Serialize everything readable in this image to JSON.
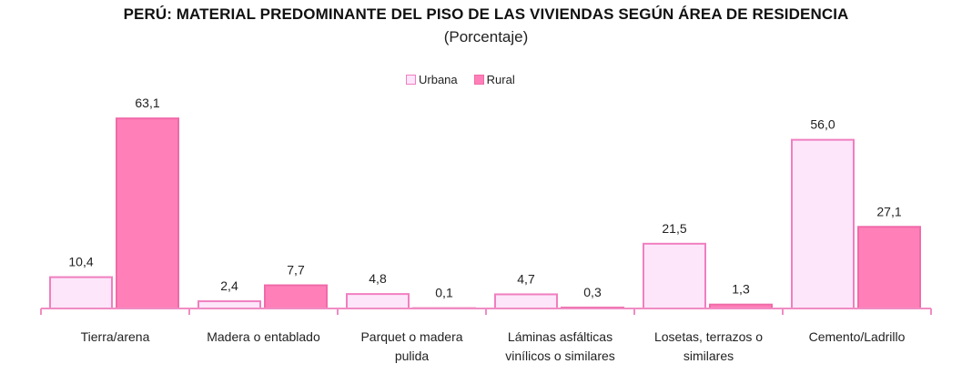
{
  "chart_data": {
    "type": "bar",
    "title": "PERÚ: MATERIAL PREDOMINANTE DEL PISO DE LAS VIVIENDAS SEGÚN ÁREA DE RESIDENCIA",
    "subtitle": "(Porcentaje)",
    "categories": [
      [
        "Tierra/arena"
      ],
      [
        "Madera o entablado"
      ],
      [
        "Parquet o madera",
        "pulida"
      ],
      [
        "Láminas asfálticas",
        "vinílicos o similares"
      ],
      [
        "Losetas, terrazos o",
        "similares"
      ],
      [
        "Cemento/Ladrillo"
      ]
    ],
    "series": [
      {
        "name": "Urbana",
        "values": [
          10.4,
          2.4,
          4.8,
          4.7,
          21.5,
          56.0
        ],
        "labels": [
          "10,4",
          "2,4",
          "4,8",
          "4,7",
          "21,5",
          "56,0"
        ]
      },
      {
        "name": "Rural",
        "values": [
          63.1,
          7.7,
          0.1,
          0.3,
          1.3,
          27.1
        ],
        "labels": [
          "63,1",
          "7,7",
          "0,1",
          "0,3",
          "1,3",
          "27,1"
        ]
      }
    ],
    "legend_position": "top-center",
    "grid": false,
    "ylim": [
      0,
      70
    ]
  },
  "colors": {
    "urbana_fill": "#fde6fa",
    "urbana_stroke": "#f07fc0",
    "rural_fill": "#ff80b8",
    "rural_stroke": "#f06aa8",
    "axis": "#f08cc4"
  }
}
